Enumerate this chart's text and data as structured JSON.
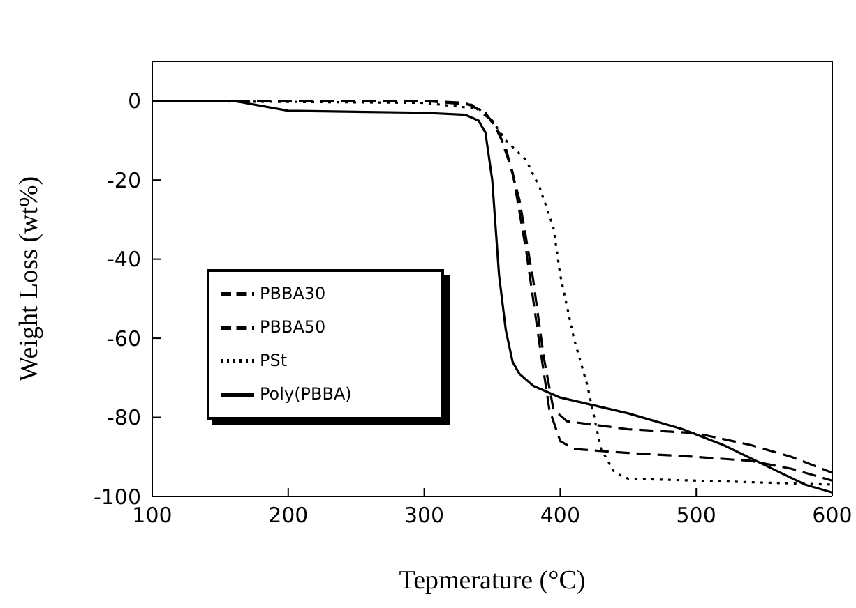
{
  "chart_data": {
    "type": "line",
    "xlabel": "Tepmerature (°C)",
    "ylabel": "Weight Loss (wt%)",
    "xlim": [
      100,
      600
    ],
    "xticks": [
      100,
      200,
      300,
      400,
      500,
      600
    ],
    "ylim": [
      -100,
      10
    ],
    "yticks": [
      -100,
      -80,
      -60,
      -40,
      -20,
      0
    ],
    "grid": false,
    "legend": "left",
    "marker": "none",
    "series": [
      {
        "name": "Poly(PBBA)",
        "color": "#000000",
        "line_style": "solid",
        "x": [
          100,
          160,
          200,
          300,
          330,
          340,
          345,
          350,
          355,
          360,
          365,
          370,
          380,
          400,
          450,
          490,
          520,
          550,
          580,
          600
        ],
        "values": [
          0,
          0,
          -2.5,
          -3,
          -3.5,
          -5,
          -8,
          -20,
          -44,
          -58,
          -66,
          -69,
          -72,
          -75,
          -79,
          -83,
          -87,
          -92,
          -97,
          -99
        ]
      },
      {
        "name": "PBBA50",
        "color": "#000000",
        "line_style": "dashed",
        "x": [
          100,
          300,
          335,
          350,
          360,
          370,
          380,
          388,
          395,
          405,
          450,
          500,
          540,
          570,
          600
        ],
        "values": [
          0,
          0,
          -1,
          -5,
          -12,
          -25,
          -45,
          -65,
          -78,
          -81,
          -83,
          -84,
          -87,
          -90,
          -94
        ]
      },
      {
        "name": "PBBA30",
        "color": "#000000",
        "line_style": "dashed",
        "x": [
          100,
          300,
          330,
          345,
          355,
          365,
          375,
          385,
          392,
          400,
          410,
          450,
          500,
          540,
          570,
          600
        ],
        "values": [
          0,
          0,
          -0.5,
          -3,
          -8,
          -18,
          -38,
          -62,
          -78,
          -86,
          -88,
          -89,
          -90,
          -91,
          -93,
          -96
        ]
      },
      {
        "name": "PSt",
        "color": "#000000",
        "line_style": "dotted",
        "x": [
          100,
          300,
          340,
          350,
          360,
          375,
          385,
          395,
          400,
          410,
          420,
          430,
          440,
          450,
          500,
          550,
          600
        ],
        "values": [
          0,
          -0.5,
          -2,
          -5,
          -10,
          -15,
          -22,
          -32,
          -44,
          -60,
          -72,
          -88,
          -94,
          -95.5,
          -96,
          -96.5,
          -97
        ]
      }
    ]
  }
}
